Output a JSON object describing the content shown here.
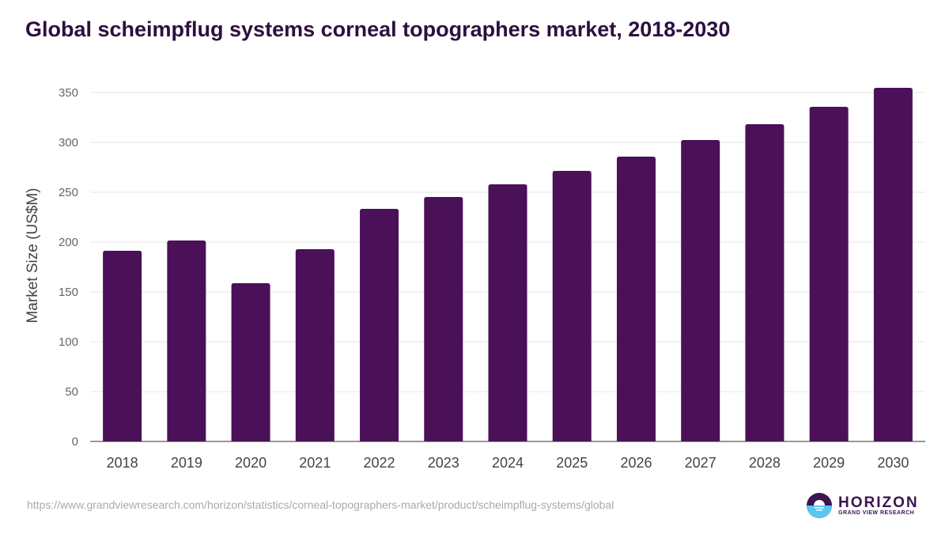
{
  "chart_data": {
    "type": "bar",
    "title": "Global scheimpflug systems corneal topographers market, 2018-2030",
    "xlabel": "",
    "ylabel": "Market Size (US$M)",
    "ylim": [
      0,
      350
    ],
    "yticks": [
      0,
      50,
      100,
      150,
      200,
      250,
      300,
      350
    ],
    "grid": true,
    "categories": [
      "2018",
      "2019",
      "2020",
      "2021",
      "2022",
      "2023",
      "2024",
      "2025",
      "2026",
      "2027",
      "2028",
      "2029",
      "2030"
    ],
    "values": [
      191.3,
      201.6,
      158.7,
      192.9,
      233.3,
      245.2,
      257.9,
      271.4,
      285.7,
      302.4,
      318.3,
      335.7,
      354.8
    ],
    "bar_color": "#4a1058"
  },
  "source": "https://www.grandviewresearch.com/horizon/statistics/corneal-topographers-market/product/scheimpflug-systems/global",
  "logo": {
    "name": "HORIZON",
    "sub": "GRAND VIEW RESEARCH"
  }
}
